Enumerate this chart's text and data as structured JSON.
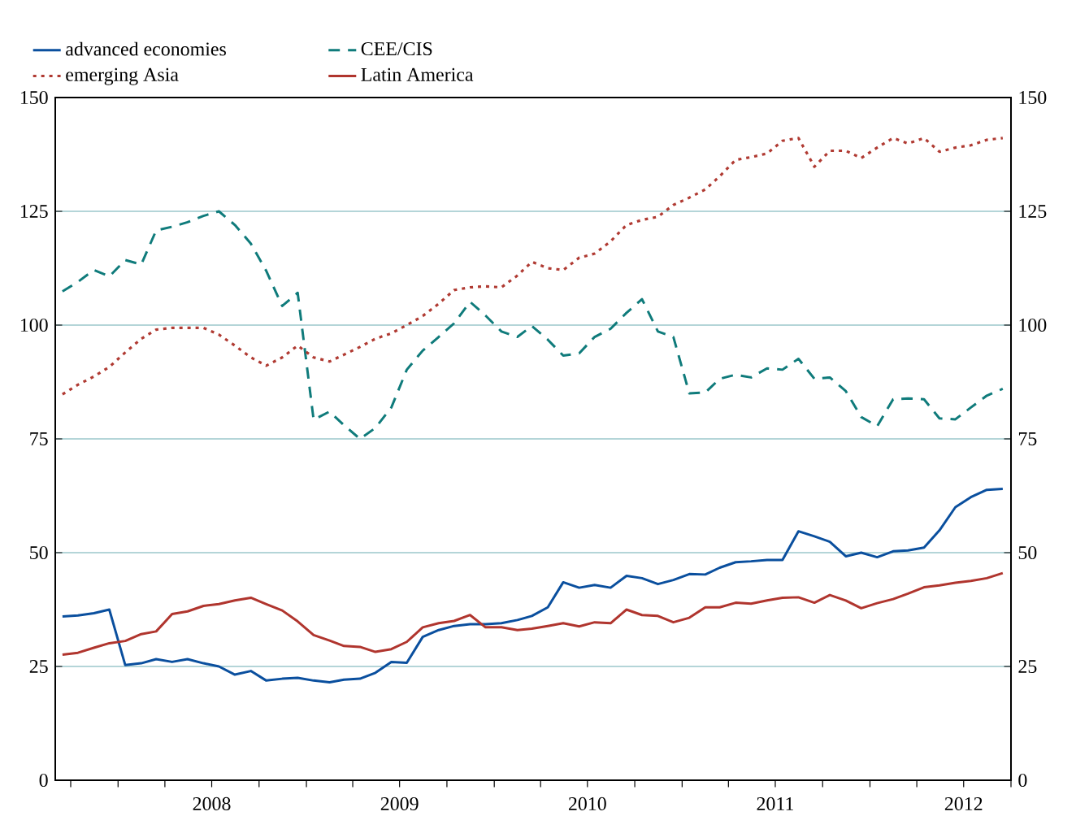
{
  "chart_data": {
    "type": "line",
    "x": [
      "2007-09-15",
      "2007-10-15",
      "2007-11-15",
      "2007-12-15",
      "2008-01-15",
      "2008-02-15",
      "2008-03-15",
      "2008-04-15",
      "2008-05-15",
      "2008-06-15",
      "2008-07-15",
      "2008-08-15",
      "2008-09-15",
      "2008-10-15",
      "2008-11-15",
      "2008-12-15",
      "2009-01-15",
      "2009-02-15",
      "2009-03-15",
      "2009-04-15",
      "2009-05-15",
      "2009-06-15",
      "2009-07-15",
      "2009-08-15",
      "2009-09-15",
      "2009-10-15",
      "2009-11-15",
      "2009-12-15",
      "2010-01-15",
      "2010-02-15",
      "2010-03-15",
      "2010-04-15",
      "2010-05-15",
      "2010-06-15",
      "2010-07-15",
      "2010-08-15",
      "2010-09-15",
      "2010-10-15",
      "2010-11-15",
      "2010-12-15",
      "2011-01-15",
      "2011-02-15",
      "2011-03-15",
      "2011-04-15",
      "2011-05-15",
      "2011-06-15",
      "2011-07-15",
      "2011-08-15",
      "2011-09-15",
      "2011-10-15",
      "2011-11-15",
      "2011-12-15",
      "2012-01-15",
      "2012-02-15",
      "2012-03-15",
      "2012-04-15",
      "2012-05-15",
      "2012-06-15",
      "2012-07-15",
      "2012-08-15",
      "2012-09-15"
    ],
    "series": [
      {
        "name": "advanced economies",
        "color": "#0a4f9e",
        "line_style": "solid",
        "values": [
          36,
          36.2,
          36.7,
          37.5,
          25.3,
          25.7,
          26.6,
          26,
          26.6,
          25.7,
          25,
          23.2,
          24,
          21.9,
          22.3,
          22.5,
          21.9,
          21.5,
          22.1,
          22.3,
          23.6,
          26,
          25.8,
          31.5,
          33,
          33.9,
          34.3,
          34.3,
          34.5,
          35.2,
          36.1,
          38,
          43.5,
          42.3,
          42.9,
          42.3,
          44.9,
          44.4,
          43.1,
          44,
          45.3,
          45.2,
          46.7,
          47.9,
          48.1,
          48.4,
          48.4,
          54.7,
          53.6,
          52.4,
          49.2,
          50,
          49,
          50.3,
          50.5,
          51.1,
          54.9,
          60,
          62.2,
          63.8,
          64
        ]
      },
      {
        "name": "CEE/CIS",
        "color": "#0f7b7b",
        "line_style": "dashed",
        "values": [
          107.4,
          109.5,
          112.1,
          110.7,
          114.3,
          113.3,
          120.8,
          121.6,
          122.6,
          124,
          125,
          122,
          117.9,
          111.9,
          104.2,
          107.1,
          79.2,
          81,
          78,
          75,
          77.4,
          81.9,
          90.2,
          94.4,
          97.4,
          100.4,
          105.1,
          102.1,
          98.6,
          97.4,
          99.8,
          96.8,
          93.3,
          93.8,
          97.4,
          99.2,
          102.7,
          105.7,
          98.6,
          97.4,
          85,
          85.2,
          88.2,
          89.1,
          88.5,
          90.5,
          90.2,
          92.6,
          88.2,
          88.5,
          85.5,
          79.8,
          77.8,
          83.7,
          83.9,
          83.7,
          79.5,
          79.3,
          81.9,
          84.5,
          86
        ]
      },
      {
        "name": "emerging Asia",
        "color": "#b03a32",
        "line_style": "dotted",
        "values": [
          84.8,
          86.9,
          88.7,
          90.8,
          94,
          97,
          99,
          99.4,
          99.4,
          99.4,
          97.9,
          95.5,
          92.9,
          91.1,
          92.9,
          95.5,
          92.9,
          92,
          93.5,
          95.2,
          97,
          98.2,
          100,
          102,
          104.7,
          107.7,
          108.3,
          108.5,
          108.3,
          110.9,
          113.9,
          112.5,
          112.1,
          114.8,
          115.7,
          118.4,
          122,
          123.1,
          123.8,
          126.4,
          128,
          129.8,
          132.7,
          136.3,
          136.9,
          137.7,
          140.5,
          141.1,
          134.8,
          138.3,
          138.3,
          136.7,
          139,
          141.1,
          139.9,
          141.1,
          138.1,
          139,
          139.5,
          140.7,
          141.1
        ]
      },
      {
        "name": "Latin America",
        "color": "#b0352e",
        "line_style": "solid",
        "values": [
          27.6,
          28,
          29.1,
          30.1,
          30.6,
          32.1,
          32.7,
          36.5,
          37.1,
          38.3,
          38.7,
          39.5,
          40.1,
          38.7,
          37.3,
          34.9,
          31.9,
          30.7,
          29.5,
          29.3,
          28.2,
          28.8,
          30.4,
          33.6,
          34.5,
          35,
          36.3,
          33.6,
          33.6,
          33,
          33.3,
          33.9,
          34.5,
          33.8,
          34.7,
          34.5,
          37.5,
          36.3,
          36.1,
          34.7,
          35.7,
          38,
          38,
          39,
          38.8,
          39.5,
          40.1,
          40.2,
          39,
          40.7,
          39.5,
          37.8,
          38.9,
          39.8,
          41,
          42.4,
          42.8,
          43.4,
          43.8,
          44.4,
          45.5
        ]
      }
    ],
    "xlim": [
      "2007-09-01",
      "2012-10-01"
    ],
    "xticks": [
      {
        "value": "2007-10-01",
        "label": null
      },
      {
        "value": "2008-01-01",
        "label": null
      },
      {
        "value": "2008-04-01",
        "label": null
      },
      {
        "value": "2008-07-01",
        "label": "2008"
      },
      {
        "value": "2008-10-01",
        "label": null
      },
      {
        "value": "2009-01-01",
        "label": null
      },
      {
        "value": "2009-04-01",
        "label": null
      },
      {
        "value": "2009-07-01",
        "label": "2009"
      },
      {
        "value": "2009-10-01",
        "label": null
      },
      {
        "value": "2010-01-01",
        "label": null
      },
      {
        "value": "2010-04-01",
        "label": null
      },
      {
        "value": "2010-07-01",
        "label": "2010"
      },
      {
        "value": "2010-10-01",
        "label": null
      },
      {
        "value": "2011-01-01",
        "label": null
      },
      {
        "value": "2011-04-01",
        "label": null
      },
      {
        "value": "2011-07-01",
        "label": "2011"
      },
      {
        "value": "2011-10-01",
        "label": null
      },
      {
        "value": "2012-01-01",
        "label": null
      },
      {
        "value": "2012-04-01",
        "label": null
      },
      {
        "value": "2012-07-01",
        "label": "2012"
      },
      {
        "value": "2012-10-01",
        "label": null
      }
    ],
    "ylim": [
      0,
      150
    ],
    "yticks": [
      0,
      25,
      50,
      75,
      100,
      125,
      150
    ],
    "y2lim": [
      0,
      150
    ],
    "y2ticks": [
      0,
      25,
      50,
      75,
      100,
      125,
      150
    ],
    "grid": "y",
    "legend": "top"
  }
}
